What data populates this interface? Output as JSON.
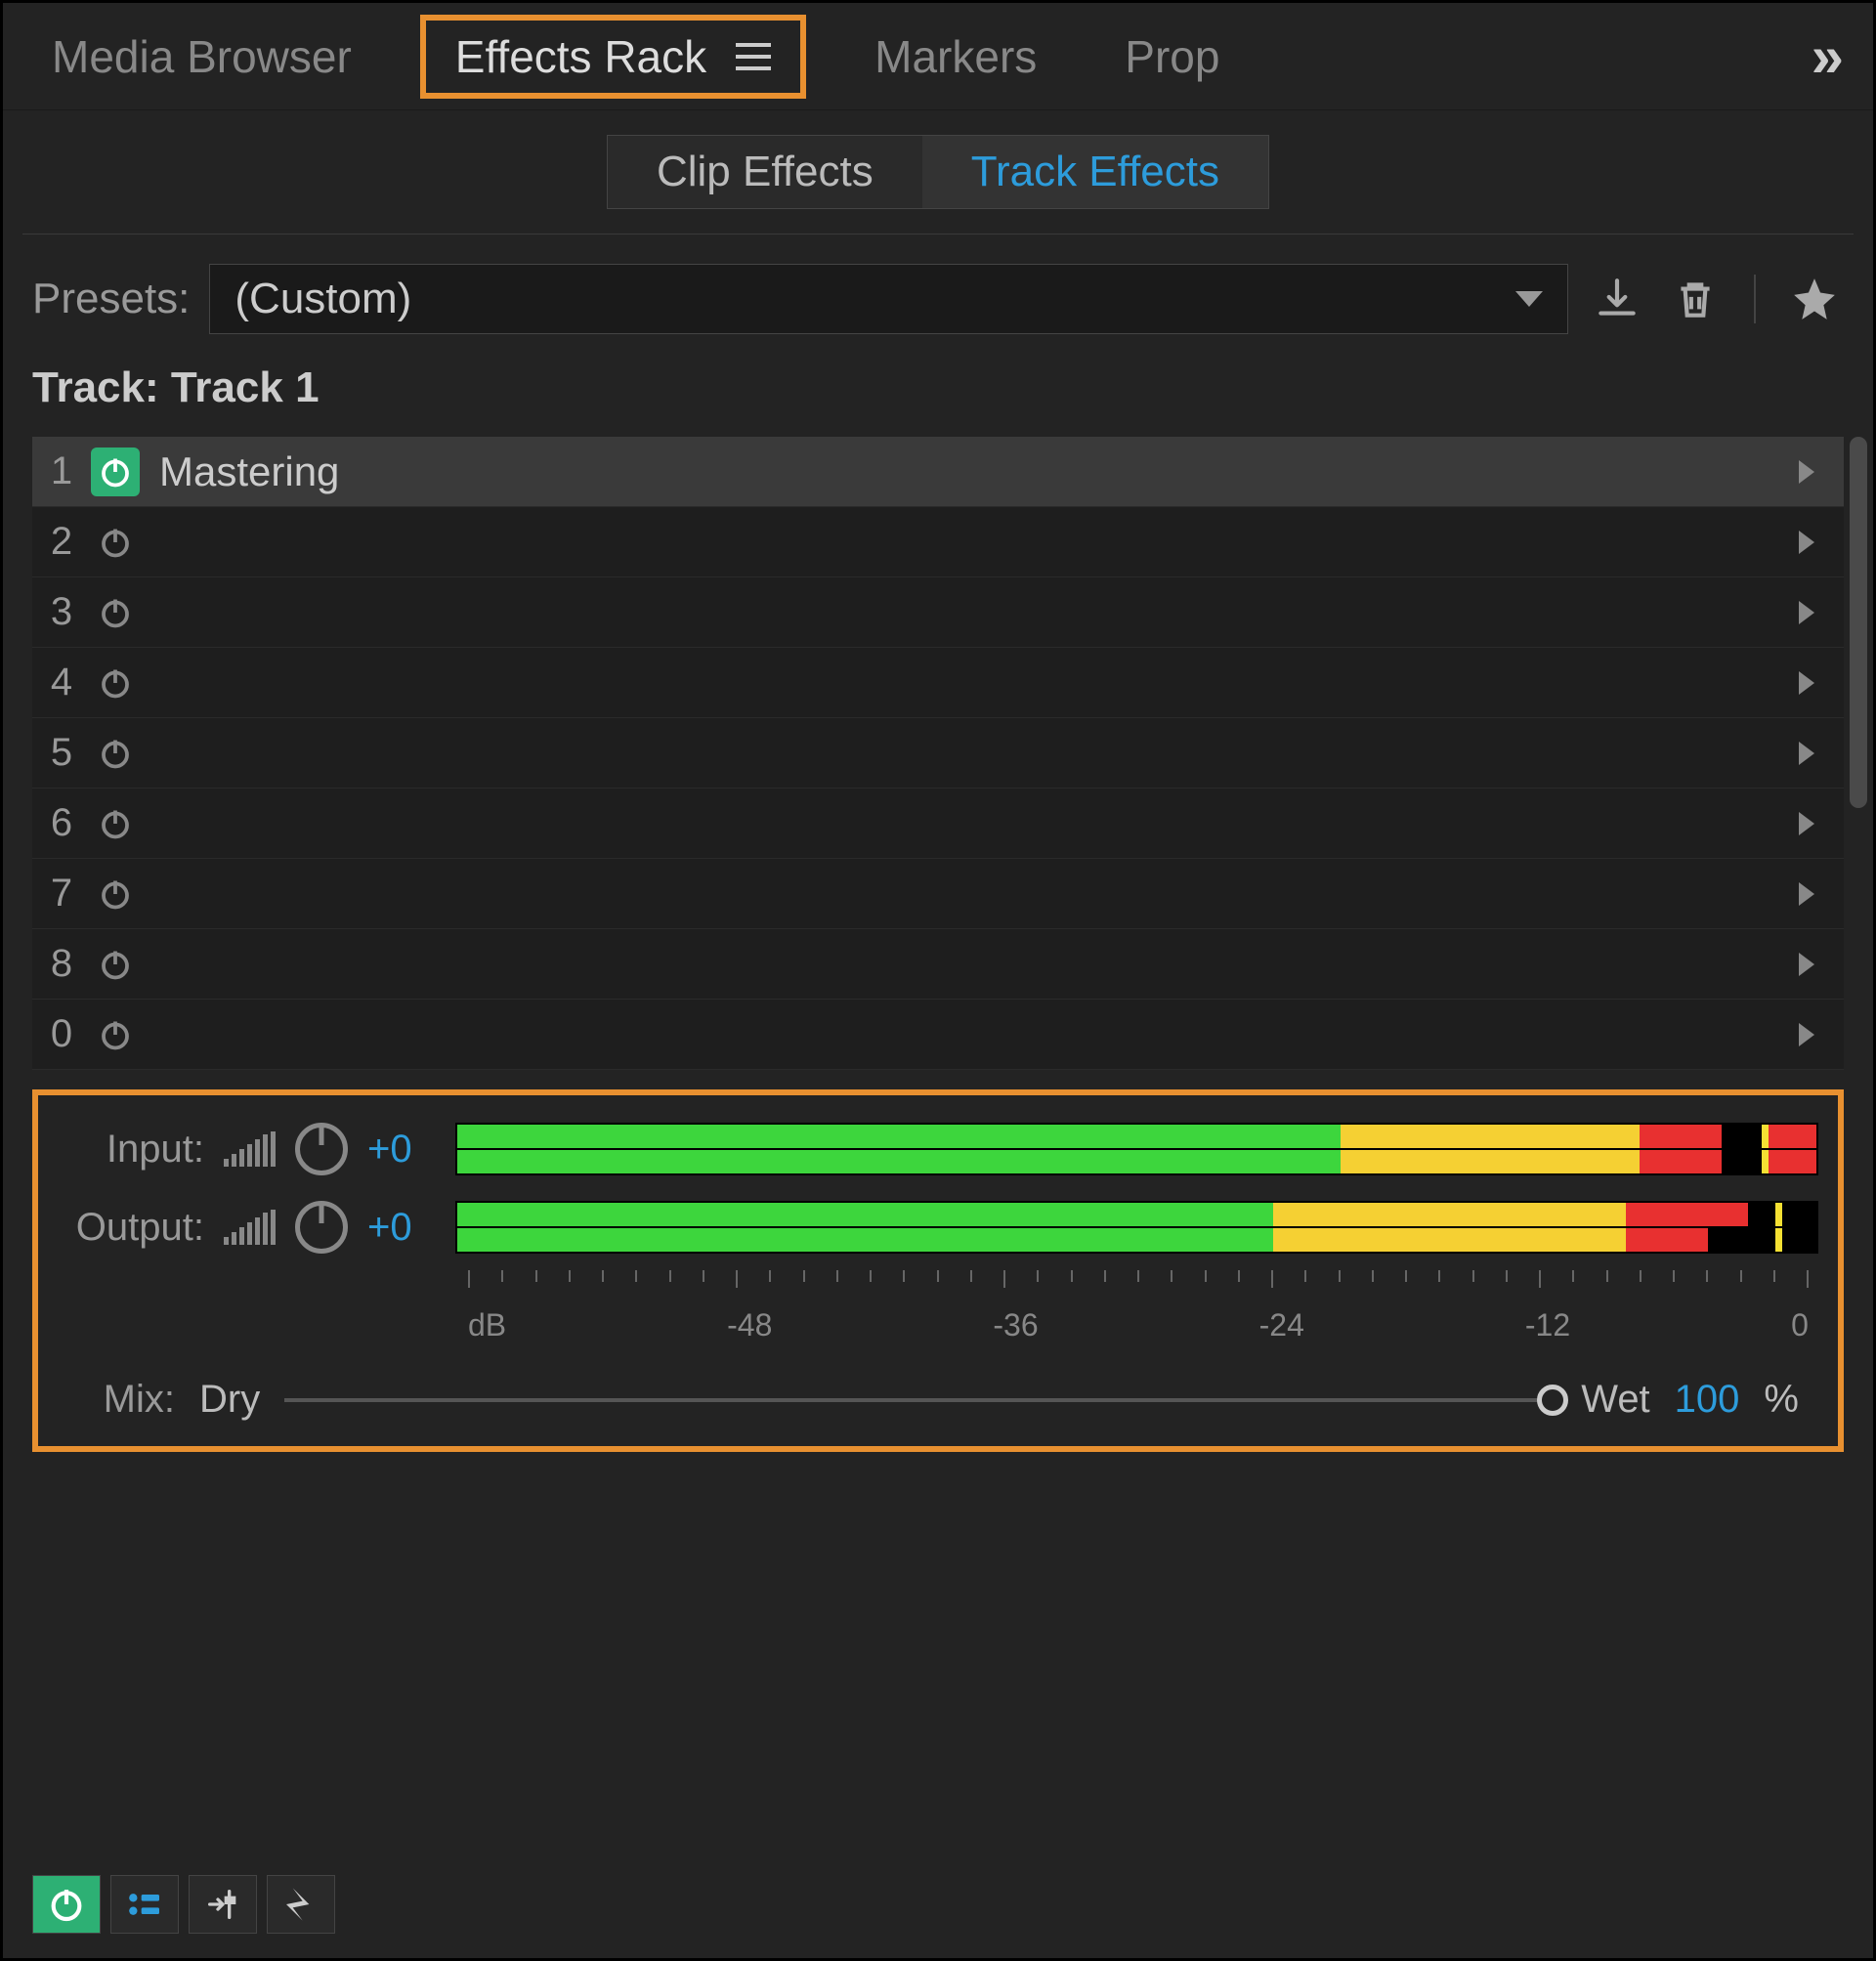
{
  "tabs": {
    "media_browser": "Media Browser",
    "effects_rack": "Effects Rack",
    "markers": "Markers",
    "prop": "Prop"
  },
  "sub_tabs": {
    "clip": "Clip Effects",
    "track": "Track Effects"
  },
  "presets": {
    "label": "Presets:",
    "value": "(Custom)"
  },
  "track_label": "Track: Track 1",
  "slots": [
    {
      "num": "1",
      "name": "Mastering",
      "on": true
    },
    {
      "num": "2",
      "name": "",
      "on": false
    },
    {
      "num": "3",
      "name": "",
      "on": false
    },
    {
      "num": "4",
      "name": "",
      "on": false
    },
    {
      "num": "5",
      "name": "",
      "on": false
    },
    {
      "num": "6",
      "name": "",
      "on": false
    },
    {
      "num": "7",
      "name": "",
      "on": false
    },
    {
      "num": "8",
      "name": "",
      "on": false
    },
    {
      "num": "0",
      "name": "",
      "on": false
    }
  ],
  "io": {
    "input_label": "Input:",
    "input_value": "+0",
    "output_label": "Output:",
    "output_value": "+0",
    "input_meter": {
      "top": [
        {
          "c": "green",
          "w": 65
        },
        {
          "c": "yellow",
          "w": 22
        },
        {
          "c": "red",
          "w": 6
        },
        {
          "c": "black",
          "w": 3
        },
        {
          "c": "peak",
          "w": 0.5
        },
        {
          "c": "red",
          "w": 3.5
        }
      ],
      "bottom": [
        {
          "c": "green",
          "w": 65
        },
        {
          "c": "yellow",
          "w": 22
        },
        {
          "c": "red",
          "w": 6
        },
        {
          "c": "black",
          "w": 3
        },
        {
          "c": "peak",
          "w": 0.5
        },
        {
          "c": "red",
          "w": 3.5
        }
      ]
    },
    "output_meter": {
      "top": [
        {
          "c": "green",
          "w": 60
        },
        {
          "c": "yellow",
          "w": 26
        },
        {
          "c": "red",
          "w": 9
        },
        {
          "c": "black",
          "w": 2
        },
        {
          "c": "peak",
          "w": 0.5
        },
        {
          "c": "black",
          "w": 2.5
        }
      ],
      "bottom": [
        {
          "c": "green",
          "w": 60
        },
        {
          "c": "yellow",
          "w": 26
        },
        {
          "c": "red",
          "w": 6
        },
        {
          "c": "black",
          "w": 5
        },
        {
          "c": "peak",
          "w": 0.5
        },
        {
          "c": "black",
          "w": 2.5
        }
      ]
    },
    "db_labels": [
      "dB",
      "-48",
      "-36",
      "-24",
      "-12",
      "0"
    ]
  },
  "mix": {
    "label": "Mix:",
    "dry": "Dry",
    "wet": "Wet",
    "value": "100",
    "pct": "%"
  },
  "colors": {
    "highlight_border": "#e89030",
    "accent_blue": "#2d9cdb",
    "power_green": "#2db074",
    "meter_green": "#3dd63d",
    "meter_yellow": "#f5d033",
    "meter_red": "#e83030"
  }
}
